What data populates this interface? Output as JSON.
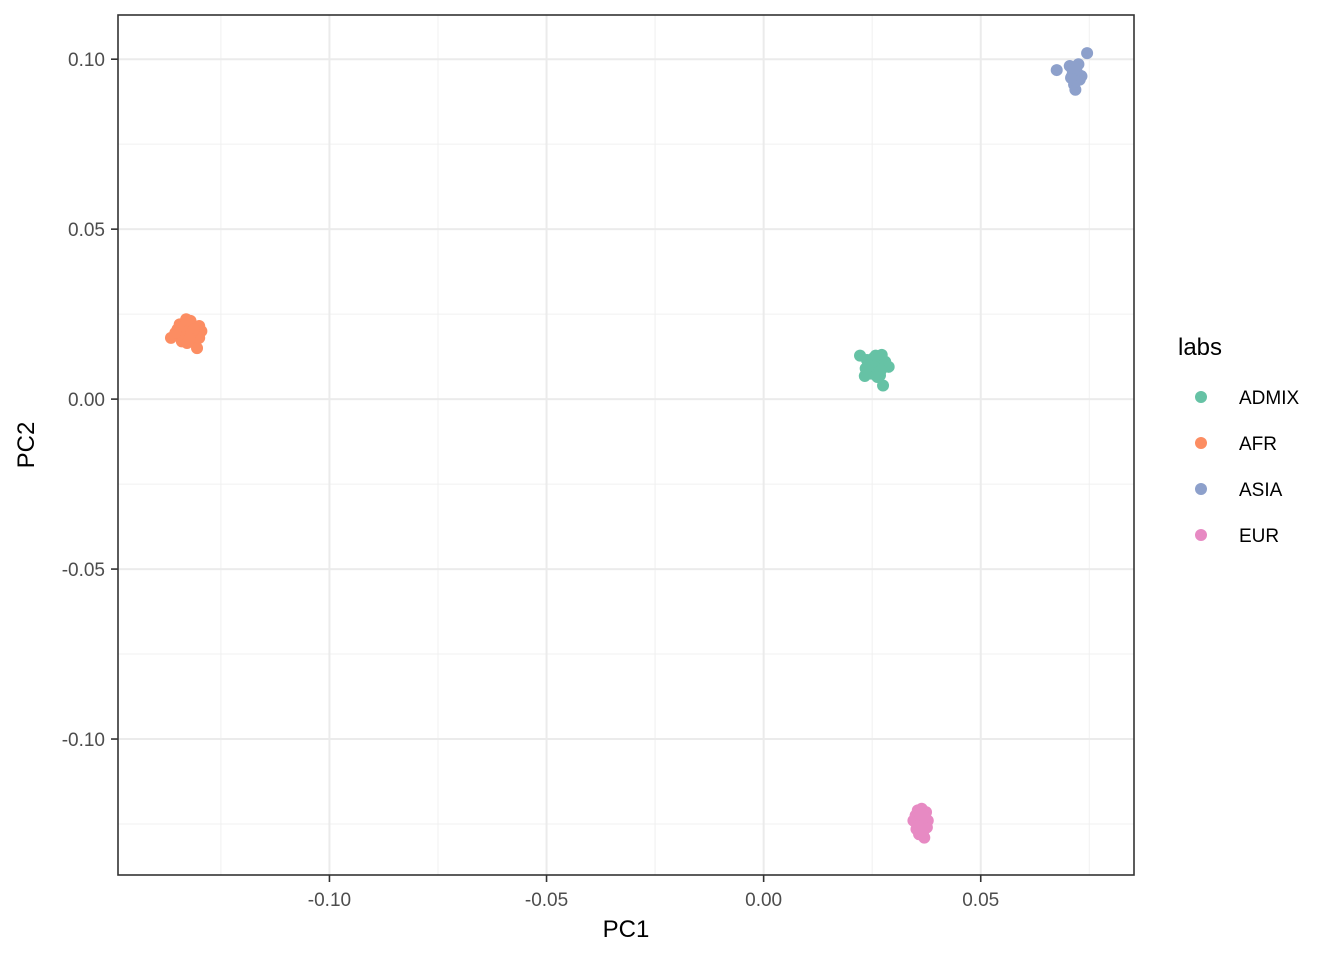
{
  "chart_data": {
    "type": "scatter",
    "title": "",
    "xlabel": "PC1",
    "ylabel": "PC2",
    "xlim": [
      -0.1487,
      0.0853
    ],
    "ylim": [
      -0.14,
      0.113
    ],
    "x_ticks": [
      {
        "value": -0.1,
        "label": "-0.10"
      },
      {
        "value": -0.05,
        "label": "-0.05"
      },
      {
        "value": 0.0,
        "label": "0.00"
      },
      {
        "value": 0.05,
        "label": "0.05"
      }
    ],
    "y_ticks": [
      {
        "value": 0.1,
        "label": "0.10"
      },
      {
        "value": 0.05,
        "label": "0.05"
      },
      {
        "value": 0.0,
        "label": "0.00"
      },
      {
        "value": -0.05,
        "label": "-0.05"
      },
      {
        "value": -0.1,
        "label": "-0.10"
      }
    ],
    "grid": true,
    "legend_title": "labs",
    "legend_position": "right",
    "series": [
      {
        "name": "ADMIX",
        "color": "#66c2a5",
        "points": [
          [
            0.0222,
            0.0128
          ],
          [
            0.0238,
            0.0115
          ],
          [
            0.0245,
            0.0102
          ],
          [
            0.0252,
            0.012
          ],
          [
            0.026,
            0.0088
          ],
          [
            0.0248,
            0.0075
          ],
          [
            0.0233,
            0.0068
          ],
          [
            0.024,
            0.0082
          ],
          [
            0.0265,
            0.0105
          ],
          [
            0.0272,
            0.013
          ],
          [
            0.028,
            0.011
          ],
          [
            0.0288,
            0.0095
          ],
          [
            0.0275,
            0.004
          ],
          [
            0.0268,
            0.007
          ],
          [
            0.0255,
            0.0095
          ],
          [
            0.0242,
            0.0098
          ],
          [
            0.027,
            0.0085
          ],
          [
            0.0258,
            0.0128
          ],
          [
            0.0235,
            0.009
          ],
          [
            0.0262,
            0.0065
          ]
        ]
      },
      {
        "name": "AFR",
        "color": "#fc8d62",
        "points": [
          [
            -0.1365,
            0.018
          ],
          [
            -0.135,
            0.0205
          ],
          [
            -0.1345,
            0.022
          ],
          [
            -0.134,
            0.019
          ],
          [
            -0.1335,
            0.0215
          ],
          [
            -0.133,
            0.0235
          ],
          [
            -0.1325,
            0.02
          ],
          [
            -0.132,
            0.023
          ],
          [
            -0.1315,
            0.0185
          ],
          [
            -0.131,
            0.0175
          ],
          [
            -0.1305,
            0.015
          ],
          [
            -0.13,
            0.018
          ],
          [
            -0.1295,
            0.02
          ],
          [
            -0.13,
            0.0215
          ],
          [
            -0.134,
            0.017
          ],
          [
            -0.1328,
            0.0165
          ],
          [
            -0.1318,
            0.0195
          ],
          [
            -0.1355,
            0.0195
          ],
          [
            -0.1312,
            0.0205
          ],
          [
            -0.1322,
            0.0178
          ]
        ]
      },
      {
        "name": "ASIA",
        "color": "#8da0cb",
        "points": [
          [
            0.0675,
            0.0968
          ],
          [
            0.0705,
            0.098
          ],
          [
            0.071,
            0.095
          ],
          [
            0.0715,
            0.0925
          ],
          [
            0.0718,
            0.091
          ],
          [
            0.0722,
            0.096
          ],
          [
            0.0725,
            0.0985
          ],
          [
            0.0728,
            0.094
          ],
          [
            0.0732,
            0.095
          ],
          [
            0.0745,
            0.1018
          ],
          [
            0.0712,
            0.0965
          ],
          [
            0.072,
            0.0935
          ],
          [
            0.0708,
            0.0945
          ],
          [
            0.0716,
            0.0975
          ]
        ]
      },
      {
        "name": "EUR",
        "color": "#e78ac3",
        "points": [
          [
            0.0345,
            -0.124
          ],
          [
            0.035,
            -0.1225
          ],
          [
            0.0352,
            -0.1265
          ],
          [
            0.0355,
            -0.121
          ],
          [
            0.0358,
            -0.128
          ],
          [
            0.036,
            -0.1235
          ],
          [
            0.0362,
            -0.125
          ],
          [
            0.0364,
            -0.1205
          ],
          [
            0.0366,
            -0.127
          ],
          [
            0.0368,
            -0.1225
          ],
          [
            0.037,
            -0.129
          ],
          [
            0.0372,
            -0.1245
          ],
          [
            0.0374,
            -0.1215
          ],
          [
            0.0376,
            -0.126
          ],
          [
            0.0378,
            -0.124
          ],
          [
            0.0356,
            -0.1255
          ],
          [
            0.0361,
            -0.122
          ],
          [
            0.0367,
            -0.1275
          ],
          [
            0.0371,
            -0.123
          ],
          [
            0.0359,
            -0.1262
          ]
        ]
      }
    ]
  }
}
